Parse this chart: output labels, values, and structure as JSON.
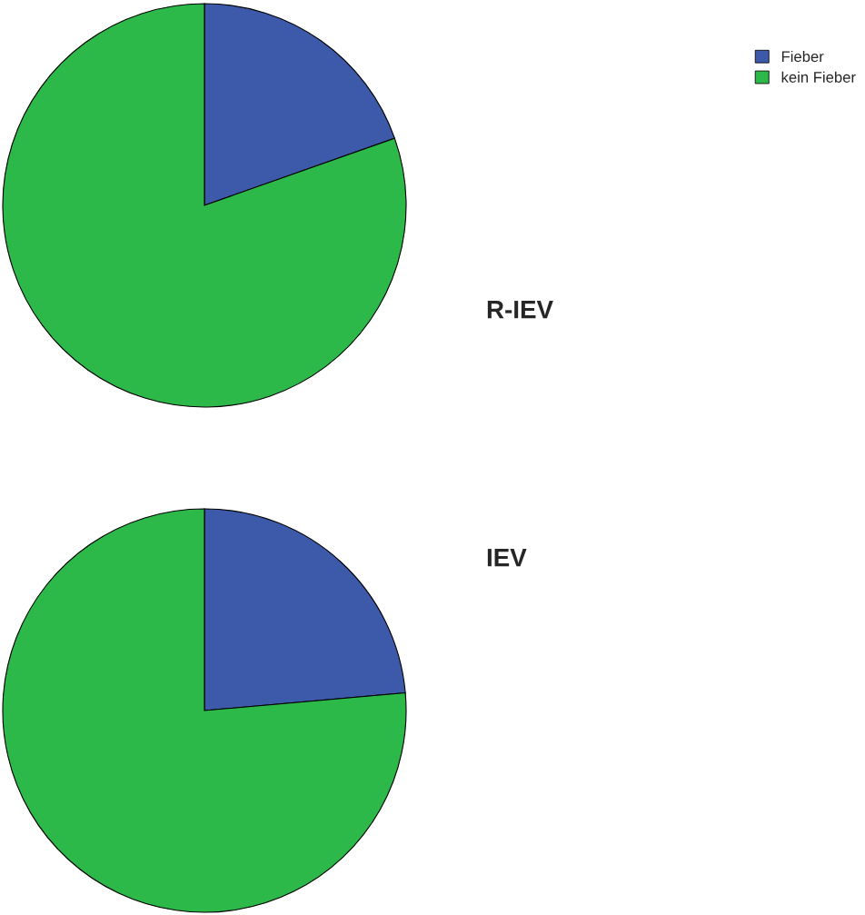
{
  "chart_data": [
    {
      "type": "pie",
      "title": "R-IEV",
      "categories": [
        "Fieber",
        "kein Fieber"
      ],
      "values": [
        19.6,
        80.4
      ],
      "colors": [
        "#3d59aa",
        "#2db84a"
      ],
      "legend": "top right"
    },
    {
      "type": "pie",
      "title": "IEV",
      "values": [
        23.6,
        76.4
      ],
      "colors": [
        "#3d59aa",
        "#2db84a"
      ]
    }
  ]
}
